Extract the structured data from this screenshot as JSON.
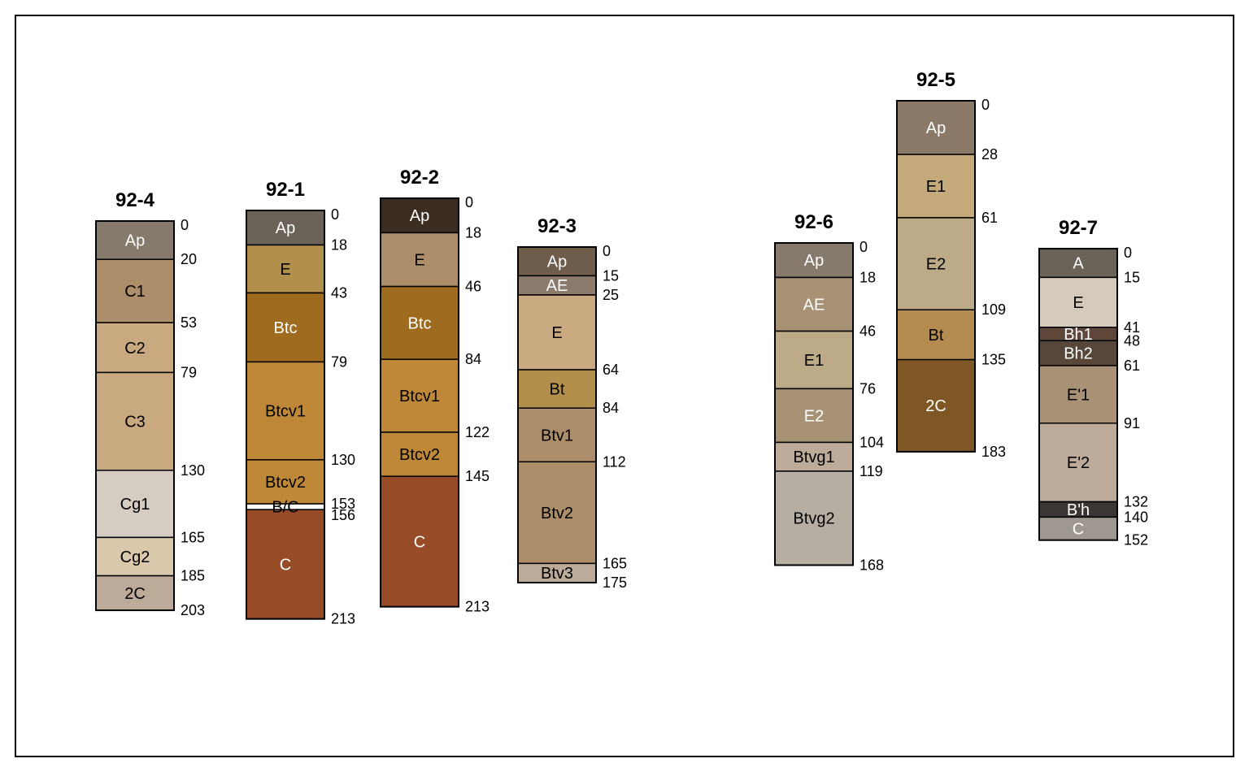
{
  "profiles": [
    {
      "name": "92-4",
      "horizons": [
        {
          "label": "Ap",
          "top": 0,
          "bottom": 20,
          "color": "#857a6c",
          "text_color": "#ffffff"
        },
        {
          "label": "C1",
          "top": 20,
          "bottom": 53,
          "color": "#ad8e6a",
          "text_color": "#000000"
        },
        {
          "label": "C2",
          "top": 53,
          "bottom": 79,
          "color": "#c9a97f",
          "text_color": "#000000"
        },
        {
          "label": "C3",
          "top": 79,
          "bottom": 130,
          "color": "#c9a97f",
          "text_color": "#000000"
        },
        {
          "label": "Cg1",
          "top": 130,
          "bottom": 165,
          "color": "#d5cdc1",
          "text_color": "#000000"
        },
        {
          "label": "Cg2",
          "top": 165,
          "bottom": 185,
          "color": "#d9c8ab",
          "text_color": "#000000"
        },
        {
          "label": "2C",
          "top": 185,
          "bottom": 203,
          "color": "#bcab98",
          "text_color": "#000000"
        }
      ]
    },
    {
      "name": "92-1",
      "horizons": [
        {
          "label": "Ap",
          "top": 0,
          "bottom": 18,
          "color": "#6b6258",
          "text_color": "#ffffff"
        },
        {
          "label": "E",
          "top": 18,
          "bottom": 43,
          "color": "#b28f4b",
          "text_color": "#000000"
        },
        {
          "label": "Btc",
          "top": 43,
          "bottom": 79,
          "color": "#9f6c1f",
          "text_color": "#ffffff"
        },
        {
          "label": "Btcv1",
          "top": 79,
          "bottom": 130,
          "color": "#be8838",
          "text_color": "#000000"
        },
        {
          "label": "Btcv2",
          "top": 130,
          "bottom": 153,
          "color": "#be8838",
          "text_color": "#000000"
        },
        {
          "label": "B/C",
          "top": 153,
          "bottom": 156,
          "color": "#ffffff",
          "text_color": "#000000"
        },
        {
          "label": "C",
          "top": 156,
          "bottom": 213,
          "color": "#974b27",
          "text_color": "#ffffff"
        }
      ],
      "depth_labels": [
        "0",
        "18",
        "43",
        "79",
        "130",
        "153",
        "156",
        "213"
      ]
    },
    {
      "name": "92-2",
      "horizons": [
        {
          "label": "Ap",
          "top": 0,
          "bottom": 18,
          "color": "#3b2d22",
          "text_color": "#ffffff"
        },
        {
          "label": "E",
          "top": 18,
          "bottom": 46,
          "color": "#ad8e6a",
          "text_color": "#000000"
        },
        {
          "label": "Btc",
          "top": 46,
          "bottom": 84,
          "color": "#9f6c1f",
          "text_color": "#ffffff"
        },
        {
          "label": "Btcv1",
          "top": 84,
          "bottom": 122,
          "color": "#be8838",
          "text_color": "#000000"
        },
        {
          "label": "Btcv2",
          "top": 122,
          "bottom": 145,
          "color": "#be8838",
          "text_color": "#000000"
        },
        {
          "label": "C",
          "top": 145,
          "bottom": 213,
          "color": "#974b27",
          "text_color": "#ffffff"
        }
      ]
    },
    {
      "name": "92-3",
      "horizons": [
        {
          "label": "Ap",
          "top": 0,
          "bottom": 15,
          "color": "#6e5d4b",
          "text_color": "#ffffff"
        },
        {
          "label": "AE",
          "top": 15,
          "bottom": 25,
          "color": "#8c7b6c",
          "text_color": "#ffffff"
        },
        {
          "label": "E",
          "top": 25,
          "bottom": 64,
          "color": "#c9a97f",
          "text_color": "#000000"
        },
        {
          "label": "Bt",
          "top": 64,
          "bottom": 84,
          "color": "#b28f4b",
          "text_color": "#000000"
        },
        {
          "label": "Btv1",
          "top": 84,
          "bottom": 112,
          "color": "#ad8e6a",
          "text_color": "#000000"
        },
        {
          "label": "Btv2",
          "top": 112,
          "bottom": 165,
          "color": "#ad8e6a",
          "text_color": "#000000"
        },
        {
          "label": "Btv3",
          "top": 165,
          "bottom": 175,
          "color": "#bcab98",
          "text_color": "#000000"
        }
      ]
    },
    {
      "name": "92-6",
      "horizons": [
        {
          "label": "Ap",
          "top": 0,
          "bottom": 18,
          "color": "#857a6c",
          "text_color": "#ffffff"
        },
        {
          "label": "AE",
          "top": 18,
          "bottom": 46,
          "color": "#a79275",
          "text_color": "#ffffff"
        },
        {
          "label": "E1",
          "top": 46,
          "bottom": 76,
          "color": "#bdaa87",
          "text_color": "#000000"
        },
        {
          "label": "E2",
          "top": 76,
          "bottom": 104,
          "color": "#a79275",
          "text_color": "#ffffff"
        },
        {
          "label": "Btvg1",
          "top": 104,
          "bottom": 119,
          "color": "#bcab98",
          "text_color": "#000000"
        },
        {
          "label": "Btvg2",
          "top": 119,
          "bottom": 168,
          "color": "#b7aea3",
          "text_color": "#000000"
        }
      ]
    },
    {
      "name": "92-5",
      "horizons": [
        {
          "label": "Ap",
          "top": 0,
          "bottom": 28,
          "color": "#8a7967",
          "text_color": "#ffffff"
        },
        {
          "label": "E1",
          "top": 28,
          "bottom": 61,
          "color": "#c4aa7b",
          "text_color": "#000000"
        },
        {
          "label": "E2",
          "top": 61,
          "bottom": 109,
          "color": "#bdaa87",
          "text_color": "#000000"
        },
        {
          "label": "Bt",
          "top": 109,
          "bottom": 135,
          "color": "#b48c51",
          "text_color": "#000000"
        },
        {
          "label": "2C",
          "top": 135,
          "bottom": 183,
          "color": "#7f5724",
          "text_color": "#ffffff"
        }
      ]
    },
    {
      "name": "92-7",
      "horizons": [
        {
          "label": "A",
          "top": 0,
          "bottom": 15,
          "color": "#6b6258",
          "text_color": "#ffffff"
        },
        {
          "label": "E",
          "top": 15,
          "bottom": 41,
          "color": "#d5cbbd",
          "text_color": "#000000"
        },
        {
          "label": "Bh1",
          "top": 41,
          "bottom": 48,
          "color": "#5e473a",
          "text_color": "#ffffff"
        },
        {
          "label": "Bh2",
          "top": 48,
          "bottom": 61,
          "color": "#56473a",
          "text_color": "#ffffff"
        },
        {
          "label": "E'1",
          "top": 61,
          "bottom": 91,
          "color": "#a89175",
          "text_color": "#000000"
        },
        {
          "label": "E'2",
          "top": 91,
          "bottom": 132,
          "color": "#bcab98",
          "text_color": "#000000"
        },
        {
          "label": "B'h",
          "top": 132,
          "bottom": 140,
          "color": "#3b3631",
          "text_color": "#ffffff"
        },
        {
          "label": "C",
          "top": 140,
          "bottom": 152,
          "color": "#9f9891",
          "text_color": "#ffffff"
        }
      ]
    }
  ]
}
